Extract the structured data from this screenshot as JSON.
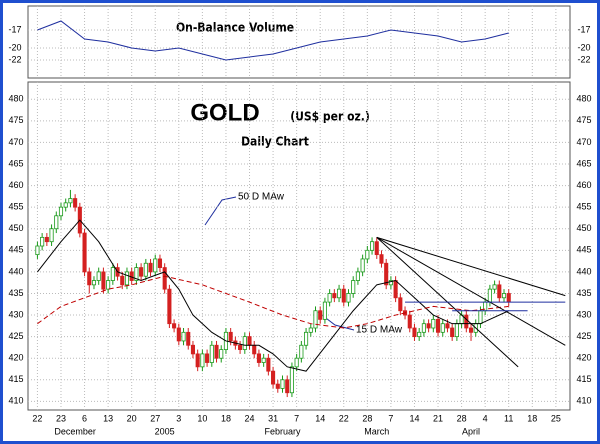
{
  "chart_data": {
    "type": "candlestick",
    "title": "GOLD",
    "subtitle": "(US$ per oz.)",
    "caption": "Daily Chart",
    "panel_title": "On-Balance Volume",
    "annotations": [
      "50 D MAw",
      "15 D MAw"
    ],
    "xlim": [
      -2,
      113
    ],
    "xticks": [
      {
        "value": 0,
        "label": "22"
      },
      {
        "value": 5,
        "label": "23"
      },
      {
        "value": 10,
        "label": "6"
      },
      {
        "value": 15,
        "label": "13"
      },
      {
        "value": 20,
        "label": "20"
      },
      {
        "value": 25,
        "label": "27"
      },
      {
        "value": 30,
        "label": "3"
      },
      {
        "value": 35,
        "label": "10"
      },
      {
        "value": 40,
        "label": "18"
      },
      {
        "value": 45,
        "label": "24"
      },
      {
        "value": 50,
        "label": "31"
      },
      {
        "value": 55,
        "label": "7"
      },
      {
        "value": 60,
        "label": "14"
      },
      {
        "value": 65,
        "label": "22"
      },
      {
        "value": 70,
        "label": "28"
      },
      {
        "value": 75,
        "label": "7"
      },
      {
        "value": 80,
        "label": "14"
      },
      {
        "value": 85,
        "label": "21"
      },
      {
        "value": 90,
        "label": "28"
      },
      {
        "value": 95,
        "label": "4"
      },
      {
        "value": 100,
        "label": "11"
      },
      {
        "value": 105,
        "label": "18"
      },
      {
        "value": 110,
        "label": "25"
      }
    ],
    "months": [
      {
        "value": 8,
        "label": "December"
      },
      {
        "value": 27,
        "label": "2005"
      },
      {
        "value": 52,
        "label": "February"
      },
      {
        "value": 72,
        "label": "March"
      },
      {
        "value": 92,
        "label": "April"
      }
    ],
    "ylim": [
      408,
      484
    ],
    "yticks": [
      410,
      415,
      420,
      425,
      430,
      435,
      440,
      445,
      450,
      455,
      460,
      465,
      470,
      475,
      480
    ],
    "candles": [
      [
        444,
        447,
        443,
        446
      ],
      [
        446,
        449,
        445,
        448
      ],
      [
        448,
        449,
        446,
        447
      ],
      [
        447,
        451,
        446,
        450
      ],
      [
        450,
        454,
        449,
        453
      ],
      [
        453,
        456,
        452,
        455
      ],
      [
        455,
        457,
        454,
        456
      ],
      [
        456,
        459,
        455,
        457
      ],
      [
        457,
        458,
        454,
        455
      ],
      [
        455,
        456,
        448,
        449
      ],
      [
        449,
        450,
        439,
        440
      ],
      [
        440,
        441,
        435,
        437
      ],
      [
        437,
        439,
        436,
        438
      ],
      [
        438,
        441,
        437,
        440
      ],
      [
        440,
        441,
        435,
        436
      ],
      [
        436,
        439,
        435,
        438
      ],
      [
        438,
        442,
        437,
        441
      ],
      [
        441,
        442,
        438,
        439
      ],
      [
        439,
        440,
        436,
        437
      ],
      [
        437,
        441,
        436,
        440
      ],
      [
        440,
        441,
        437,
        438
      ],
      [
        438,
        442,
        437,
        441
      ],
      [
        441,
        442,
        438,
        439
      ],
      [
        439,
        443,
        438,
        442
      ],
      [
        442,
        443,
        439,
        440
      ],
      [
        440,
        444,
        439,
        443
      ],
      [
        443,
        444,
        440,
        441
      ],
      [
        441,
        442,
        435,
        436
      ],
      [
        436,
        437,
        427,
        428
      ],
      [
        428,
        429,
        426,
        427
      ],
      [
        427,
        428,
        423,
        424
      ],
      [
        424,
        427,
        423,
        426
      ],
      [
        426,
        427,
        422,
        423
      ],
      [
        423,
        424,
        420,
        421
      ],
      [
        421,
        422,
        417,
        418
      ],
      [
        418,
        422,
        417,
        421
      ],
      [
        421,
        422,
        418,
        419
      ],
      [
        419,
        424,
        418,
        423
      ],
      [
        423,
        424,
        419,
        420
      ],
      [
        420,
        423,
        419,
        422
      ],
      [
        422,
        427,
        421,
        426
      ],
      [
        426,
        427,
        423,
        424
      ],
      [
        424,
        425,
        422,
        423
      ],
      [
        423,
        424,
        421,
        422
      ],
      [
        422,
        426,
        421,
        425
      ],
      [
        425,
        426,
        422,
        423
      ],
      [
        423,
        424,
        420,
        421
      ],
      [
        421,
        422,
        418,
        419
      ],
      [
        419,
        421,
        418,
        420
      ],
      [
        420,
        421,
        416,
        417
      ],
      [
        417,
        418,
        413,
        414
      ],
      [
        414,
        415,
        412,
        413
      ],
      [
        413,
        416,
        412,
        415
      ],
      [
        415,
        416,
        411,
        412
      ],
      [
        412,
        419,
        411,
        418
      ],
      [
        418,
        421,
        417,
        420
      ],
      [
        420,
        424,
        419,
        423
      ],
      [
        423,
        427,
        422,
        426
      ],
      [
        426,
        428,
        425,
        427
      ],
      [
        427,
        432,
        426,
        431
      ],
      [
        431,
        432,
        428,
        429
      ],
      [
        429,
        434,
        428,
        433
      ],
      [
        433,
        436,
        432,
        435
      ],
      [
        435,
        436,
        433,
        434
      ],
      [
        434,
        437,
        433,
        436
      ],
      [
        436,
        437,
        432,
        433
      ],
      [
        433,
        436,
        432,
        435
      ],
      [
        435,
        439,
        434,
        438
      ],
      [
        438,
        441,
        437,
        440
      ],
      [
        440,
        444,
        439,
        443
      ],
      [
        443,
        446,
        442,
        445
      ],
      [
        445,
        448,
        444,
        447
      ],
      [
        447,
        448,
        443,
        444
      ],
      [
        444,
        445,
        441,
        442
      ],
      [
        442,
        443,
        436,
        437
      ],
      [
        437,
        439,
        436,
        438
      ],
      [
        438,
        439,
        433,
        434
      ],
      [
        434,
        435,
        430,
        431
      ],
      [
        431,
        432,
        429,
        430
      ],
      [
        430,
        431,
        426,
        427
      ],
      [
        427,
        428,
        424,
        425
      ],
      [
        425,
        427,
        424,
        426
      ],
      [
        426,
        429,
        425,
        428
      ],
      [
        428,
        429,
        426,
        427
      ],
      [
        427,
        430,
        426,
        429
      ],
      [
        429,
        430,
        425,
        426
      ],
      [
        426,
        429,
        425,
        428
      ],
      [
        428,
        429,
        426,
        427
      ],
      [
        427,
        428,
        424,
        425
      ],
      [
        425,
        429,
        424,
        428
      ],
      [
        428,
        431,
        427,
        430
      ],
      [
        430,
        431,
        426,
        427
      ],
      [
        427,
        428,
        424,
        426
      ],
      [
        426,
        429,
        425,
        428
      ],
      [
        428,
        432,
        427,
        431
      ],
      [
        431,
        434,
        430,
        433
      ],
      [
        433,
        437,
        432,
        436
      ],
      [
        436,
        438,
        435,
        437
      ],
      [
        437,
        438,
        433,
        434
      ],
      [
        434,
        436,
        433,
        435
      ],
      [
        435,
        436,
        432,
        433
      ]
    ],
    "up_color": "#1a9a1a",
    "down_color": "#d42020",
    "series": [
      {
        "name": "15 D MAw",
        "color": "#000000",
        "dash": false,
        "x": [
          0,
          5,
          9,
          13,
          17,
          22,
          27,
          30,
          33,
          37,
          40,
          44,
          47,
          50,
          53,
          57,
          62,
          67,
          72,
          76,
          80,
          84,
          88,
          94,
          100
        ],
        "values": [
          440,
          447,
          452,
          447,
          440,
          438,
          440,
          436,
          430,
          426,
          424,
          423,
          423,
          421,
          418,
          417,
          424,
          431,
          437,
          438,
          434,
          430,
          428,
          428,
          431
        ]
      },
      {
        "name": "50 D MAw",
        "color": "#c00000",
        "dash": true,
        "x": [
          0,
          5,
          10,
          15,
          20,
          27,
          35,
          45,
          52,
          58,
          65,
          70,
          76,
          84,
          92,
          100
        ],
        "values": [
          428,
          432,
          434,
          436,
          437,
          439,
          437,
          433,
          430,
          428,
          427,
          428,
          430,
          432,
          431,
          432
        ]
      }
    ],
    "trendlines": [
      {
        "color": "#000000",
        "x": [
          72,
          112
        ],
        "values": [
          448,
          434.5
        ]
      },
      {
        "color": "#000000",
        "x": [
          72,
          112
        ],
        "values": [
          448,
          423
        ]
      },
      {
        "color": "#000000",
        "x": [
          72,
          102
        ],
        "values": [
          448,
          418
        ]
      },
      {
        "color": "#1f2f9f",
        "x": [
          78,
          112
        ],
        "values": [
          433,
          433
        ]
      },
      {
        "color": "#1f2f9f",
        "x": [
          88,
          104
        ],
        "values": [
          431,
          431
        ]
      }
    ],
    "obv": {
      "color": "#1f2f9f",
      "ylim": [
        -24,
        -14
      ],
      "yticks": [
        -17,
        -20,
        -22
      ],
      "x": [
        0,
        5,
        10,
        15,
        20,
        25,
        30,
        35,
        40,
        45,
        50,
        55,
        60,
        65,
        70,
        75,
        80,
        85,
        90,
        95,
        100
      ],
      "values": [
        -17,
        -15.5,
        -18.5,
        -19,
        -20,
        -20.5,
        -20,
        -21,
        -22,
        -21.5,
        -21,
        -20,
        -19,
        -18.5,
        -18,
        -17,
        -17.5,
        -18,
        -19,
        -18.5,
        -17.5
      ]
    }
  }
}
